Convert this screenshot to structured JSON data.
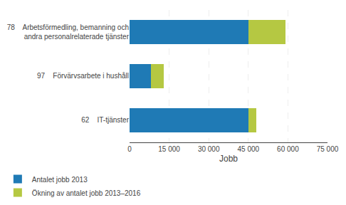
{
  "chart_data": {
    "type": "bar",
    "orientation": "horizontal",
    "stacked": true,
    "categories": [
      "78    Arbetsförmedling, bemanning och\n      andra personalrelaterade tjänster",
      "97    Förvärvsarbete i hushåll",
      "62    IT-tjänster"
    ],
    "series": [
      {
        "name": "Antalet jobb 2013",
        "color": "#1f7ab5",
        "values": [
          45000,
          8000,
          45000
        ]
      },
      {
        "name": "Ökning av antalet jobb 2013–2016",
        "color": "#b5c842",
        "values": [
          14000,
          5000,
          3000
        ]
      }
    ],
    "xlabel": "Jobb",
    "xlim": [
      0,
      75000
    ],
    "xticks": [
      0,
      {
        "value": 15000,
        "label": "15 000"
      },
      {
        "value": 30000,
        "label": "30 000"
      },
      {
        "value": 45000,
        "label": "45 000"
      },
      {
        "value": 60000,
        "label": "60 000"
      },
      {
        "value": 75000,
        "label": "75 000"
      }
    ],
    "grid": true,
    "legend": "lower left"
  }
}
